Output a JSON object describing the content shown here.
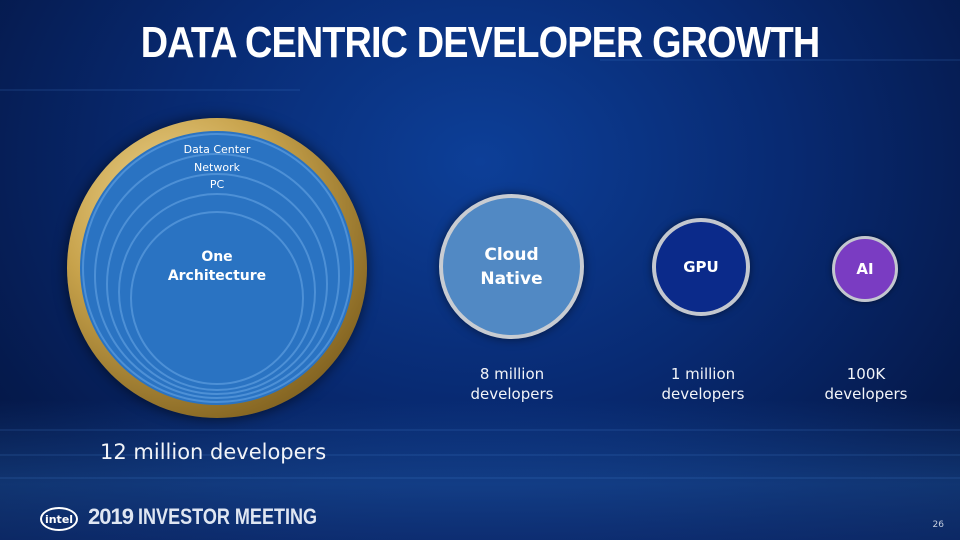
{
  "slide": {
    "title": "DATA CENTRIC DEVELOPER GROWTH",
    "one_architecture": {
      "rings": [
        "Data Center",
        "Network",
        "PC"
      ],
      "center_label_line1": "One",
      "center_label_line2": "Architecture",
      "developers": "12 million developers"
    },
    "segments": [
      {
        "label_line1": "Cloud",
        "label_line2": "Native",
        "dev_line1": "8 million",
        "dev_line2": "developers",
        "color": "#5189c4"
      },
      {
        "label_line1": "GPU",
        "label_line2": "",
        "dev_line1": "1 million",
        "dev_line2": "developers",
        "color": "#0b2a8a"
      },
      {
        "label_line1": "AI",
        "label_line2": "",
        "dev_line1": "100K",
        "dev_line2": "developers",
        "color": "#7a3cc2"
      }
    ]
  },
  "footer": {
    "logo_text": "intel",
    "year": "2019",
    "event": "INVESTOR MEETING",
    "page_number": "26"
  },
  "colors": {
    "background": "#082a72",
    "ring_gold": "#c7a24b",
    "inner_blue": "#2a73c2"
  }
}
